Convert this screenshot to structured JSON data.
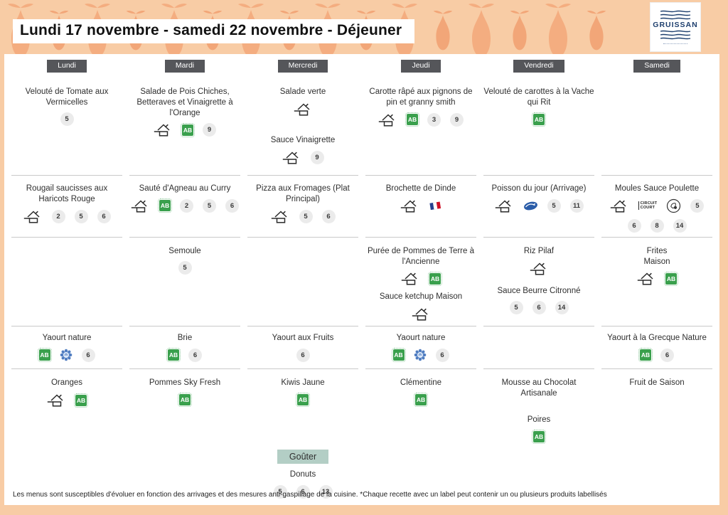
{
  "header": {
    "title": "Lundi 17 novembre - samedi 22 novembre  - Déjeuner",
    "logo_text": "GRUISSAN"
  },
  "days": [
    "Lundi",
    "Mardi",
    "Mercredi",
    "Jeudi",
    "Vendredi",
    "Samedi"
  ],
  "menu": {
    "rows": [
      {
        "section": "entree",
        "cells": [
          [
            {
              "label": "Velouté de Tomate aux Vermicelles",
              "icons": [],
              "allergens": [
                "5"
              ]
            }
          ],
          [
            {
              "label": "Salade de Pois Chiches, Betteraves et Vinaigrette à l'Orange",
              "icons": [
                "fait-maison",
                "ab"
              ],
              "allergens": [
                "9"
              ]
            }
          ],
          [
            {
              "label": "Salade verte",
              "icons": [
                "fait-maison"
              ],
              "allergens": []
            },
            {
              "label": "Sauce Vinaigrette",
              "icons": [
                "fait-maison"
              ],
              "allergens": [
                "9"
              ],
              "mt": 26
            }
          ],
          [
            {
              "label": "Carotte râpé aux pignons de pin et granny smith",
              "icons": [
                "fait-maison",
                "ab"
              ],
              "allergens": [
                "3",
                "9"
              ]
            }
          ],
          [
            {
              "label": "Velouté de carottes à la Vache qui Rit",
              "icons": [
                "ab"
              ],
              "allergens": []
            }
          ],
          []
        ]
      },
      {
        "section": "plat",
        "cells": [
          [
            {
              "label": "Rougail saucisses aux Haricots Rouge",
              "icons": [
                "fait-maison"
              ],
              "allergens": [
                "2",
                "5",
                "6"
              ]
            }
          ],
          [
            {
              "label": "Sauté d'Agneau au Curry",
              "icons": [
                "fait-maison",
                "ab"
              ],
              "allergens": [
                "2",
                "5",
                "6"
              ]
            }
          ],
          [
            {
              "label": "Pizza aux Fromages  (Plat Principal)",
              "icons": [
                "fait-maison"
              ],
              "allergens": [
                "5",
                "6"
              ]
            }
          ],
          [
            {
              "label": "Brochette de Dinde",
              "icons": [
                "fait-maison",
                "french-flag"
              ],
              "allergens": []
            }
          ],
          [
            {
              "label": "Poisson du jour (Arrivage)",
              "icons": [
                "fait-maison",
                "msc-fish"
              ],
              "allergens": [
                "5",
                "11"
              ]
            }
          ],
          [
            {
              "label": "Moules Sauce Poulette",
              "icons": [
                "fait-maison",
                "circuit-court",
                "mussel"
              ],
              "allergens": [
                "5",
                "6",
                "8",
                "14"
              ]
            }
          ]
        ]
      },
      {
        "section": "accompagnement",
        "cells": [
          [],
          [
            {
              "label": "Semoule",
              "icons": [],
              "allergens": [
                "5"
              ]
            }
          ],
          [],
          [
            {
              "label": "Purée de Pommes de Terre à l'Ancienne",
              "icons": [
                "fait-maison",
                "ab"
              ],
              "allergens": []
            },
            {
              "label": "Sauce ketchup Maison",
              "icons": [
                "fait-maison"
              ],
              "allergens": [],
              "mt": 8
            }
          ],
          [
            {
              "label": "Riz Pilaf",
              "icons": [
                "fait-maison"
              ],
              "allergens": []
            },
            {
              "label": "Sauce Beurre Citronné",
              "icons": [],
              "allergens": [
                "5",
                "6",
                "14"
              ],
              "mt": 14
            }
          ],
          [
            {
              "label": "Frites\nMaison",
              "icons": [
                "fait-maison",
                "ab"
              ],
              "allergens": []
            }
          ]
        ]
      },
      {
        "section": "laitage",
        "cells": [
          [
            {
              "label": "Yaourt nature",
              "icons": [
                "ab",
                "blue-label"
              ],
              "allergens": [
                "6"
              ]
            }
          ],
          [
            {
              "label": "Brie",
              "icons": [
                "ab"
              ],
              "allergens": [
                "6"
              ]
            }
          ],
          [
            {
              "label": "Yaourt aux Fruits",
              "icons": [],
              "allergens": [
                "6"
              ]
            }
          ],
          [
            {
              "label": "Yaourt nature",
              "icons": [
                "ab",
                "blue-label"
              ],
              "allergens": [
                "6"
              ]
            }
          ],
          [],
          [
            {
              "label": "Yaourt à la Grecque Nature",
              "icons": [
                "ab"
              ],
              "allergens": [
                "6"
              ]
            }
          ]
        ]
      },
      {
        "section": "dessert",
        "cells": [
          [
            {
              "label": "Oranges",
              "icons": [
                "fait-maison",
                "ab"
              ],
              "allergens": []
            }
          ],
          [
            {
              "label": "Pommes Sky Fresh",
              "icons": [
                "ab"
              ],
              "allergens": []
            }
          ],
          [
            {
              "label": "Kiwis Jaune",
              "icons": [
                "ab"
              ],
              "allergens": []
            }
          ],
          [
            {
              "label": "Clémentine",
              "icons": [
                "ab"
              ],
              "allergens": []
            }
          ],
          [
            {
              "label": "Mousse au Chocolat Artisanale",
              "icons": [],
              "allergens": []
            },
            {
              "label": "Poires",
              "icons": [
                "ab"
              ],
              "allergens": [],
              "mt": 22
            }
          ],
          [
            {
              "label": "Fruit de Saison",
              "icons": [],
              "allergens": []
            }
          ]
        ]
      }
    ]
  },
  "gouter": {
    "label": "Goûter",
    "column": 2,
    "items": [
      {
        "label": "Donuts",
        "icons": [],
        "allergens": [
          "5",
          "6",
          "13"
        ]
      }
    ]
  },
  "icon_text": {
    "ab": "AB",
    "circuit_line1": "CIRCUIT",
    "circuit_line2": "COURT"
  },
  "footer": {
    "note": "Les menus sont susceptibles d'évoluer en fonction des arrivages et des mesures anti-gaspillage de la cuisine. *Chaque recette avec un label peut contenir un ou plusieurs produits labellisés"
  },
  "colors": {
    "band_orange": "#f8cca5",
    "pear_orange": "#f3a87b",
    "day_button": "#55565a",
    "gouter_bg": "#b3cec5",
    "ab_green": "#3aa04d",
    "allergen_bg": "#ebebeb",
    "divider": "#c9c9c9",
    "logo_navy": "#1e3f6e"
  }
}
